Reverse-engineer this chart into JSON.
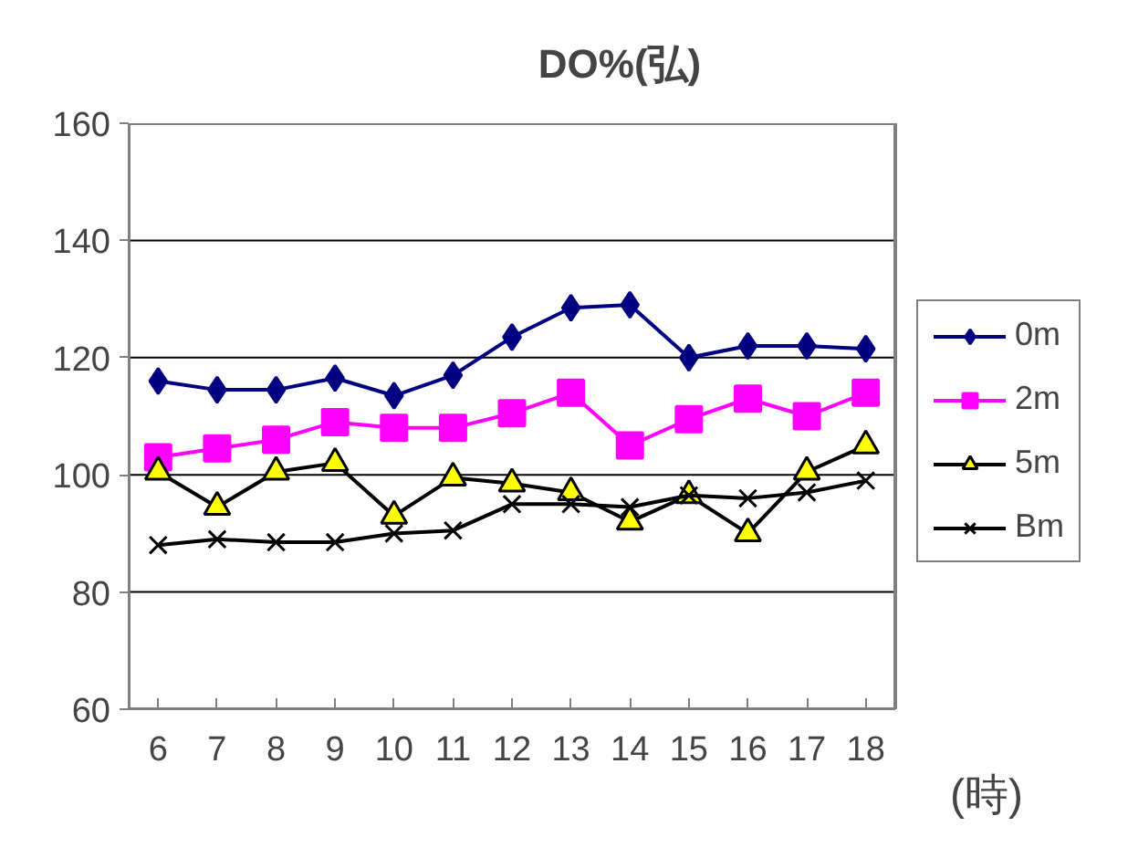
{
  "chart_data": {
    "type": "line",
    "title": "DO%(弘)",
    "xlabel": "(時)",
    "categories": [
      "6",
      "7",
      "8",
      "9",
      "10",
      "11",
      "12",
      "13",
      "14",
      "15",
      "16",
      "17",
      "18"
    ],
    "series": [
      {
        "name": "0m",
        "color": "#000080",
        "marker": "diamond",
        "values": [
          116,
          114.5,
          114.5,
          116.5,
          113.5,
          117,
          123.5,
          128.5,
          129,
          120,
          122,
          122,
          121.5
        ]
      },
      {
        "name": "2m",
        "color": "#ff00ff",
        "marker": "square",
        "values": [
          103,
          104.5,
          106,
          109,
          108,
          108,
          110.5,
          114,
          105,
          109.5,
          113,
          110,
          114
        ]
      },
      {
        "name": "5m",
        "color": "#000000",
        "marker": "triangle",
        "values": [
          100.5,
          94.5,
          100.5,
          102,
          93,
          99.5,
          98.5,
          97,
          92,
          96.5,
          90,
          100.5,
          105
        ]
      },
      {
        "name": "Bm",
        "color": "#000000",
        "marker": "cross",
        "values": [
          88,
          89,
          88.5,
          88.5,
          90,
          90.5,
          95,
          95,
          94.5,
          96.5,
          96,
          97,
          99
        ]
      }
    ],
    "ylim": [
      60,
      160
    ],
    "yticks": [
      60,
      80,
      100,
      120,
      140,
      160
    ],
    "grid": "y",
    "legend": "right"
  }
}
